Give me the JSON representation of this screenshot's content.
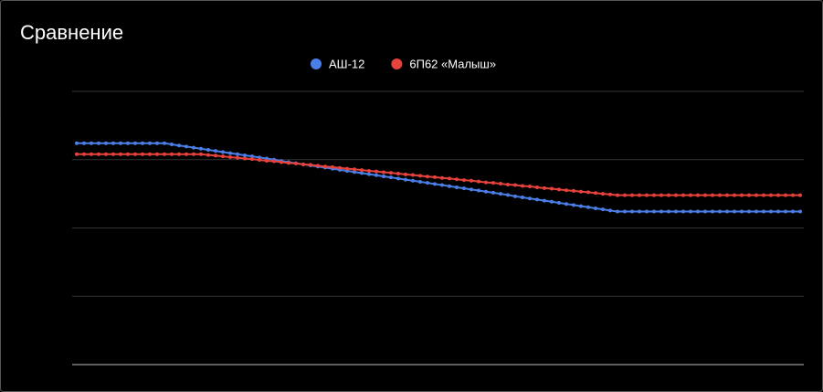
{
  "chart_data": {
    "type": "line",
    "title": "Сравнение",
    "ylim": [
      0,
      100
    ],
    "yticks": [
      0,
      25,
      50,
      75,
      100
    ],
    "grid": true,
    "tick_labels": false,
    "legend": "top",
    "series": [
      {
        "name": "АШ-12",
        "color": "#4a7fe8",
        "values": [
          81,
          81,
          81,
          81,
          81,
          81,
          81,
          81,
          81,
          81,
          81,
          81,
          81,
          80.6,
          80.2,
          79.8,
          79.4,
          79.0,
          78.6,
          78.2,
          77.8,
          77.4,
          77.0,
          76.6,
          76.2,
          75.8,
          75.4,
          75.0,
          74.5,
          74.1,
          73.7,
          73.3,
          72.9,
          72.5,
          72.1,
          71.7,
          71.3,
          70.9,
          70.5,
          70.1,
          69.7,
          69.3,
          68.9,
          68.5,
          68.1,
          67.7,
          67.3,
          66.9,
          66.5,
          66.1,
          65.7,
          65.3,
          64.9,
          64.5,
          64.1,
          63.7,
          63.3,
          62.9,
          62.5,
          62.1,
          61.6,
          61.2,
          60.8,
          60.4,
          60.0,
          59.6,
          59.2,
          58.8,
          58.4,
          58.0,
          57.6,
          57.2,
          56.8,
          56.4,
          56.0,
          56,
          56,
          56,
          56,
          56,
          56,
          56,
          56,
          56,
          56,
          56,
          56,
          56,
          56,
          56,
          56,
          56,
          56,
          56,
          56,
          56,
          56,
          56,
          56,
          56
        ]
      },
      {
        "name": "6П62 «Малыш»",
        "color": "#e8423d",
        "values": [
          77,
          77,
          77,
          77,
          77,
          77,
          77,
          77,
          77,
          77,
          77,
          77,
          77,
          77,
          77,
          77,
          77,
          77,
          76.7,
          76.5,
          76.2,
          75.9,
          75.7,
          75.4,
          75.2,
          74.9,
          74.6,
          74.4,
          74.1,
          73.8,
          73.6,
          73.3,
          73.1,
          72.8,
          72.5,
          72.3,
          72.0,
          71.7,
          71.5,
          71.2,
          70.9,
          70.7,
          70.4,
          70.2,
          69.9,
          69.6,
          69.4,
          69.1,
          68.8,
          68.6,
          68.3,
          68.1,
          67.8,
          67.5,
          67.3,
          67.0,
          66.7,
          66.5,
          66.2,
          65.9,
          65.7,
          65.4,
          65.2,
          64.9,
          64.6,
          64.4,
          64.1,
          63.8,
          63.6,
          63.3,
          63.1,
          62.8,
          62.5,
          62.3,
          62.0,
          62,
          62,
          62,
          62,
          62,
          62,
          62,
          62,
          62,
          62,
          62,
          62,
          62,
          62,
          62,
          62,
          62,
          62,
          62,
          62,
          62,
          62,
          62,
          62,
          62
        ]
      }
    ]
  }
}
